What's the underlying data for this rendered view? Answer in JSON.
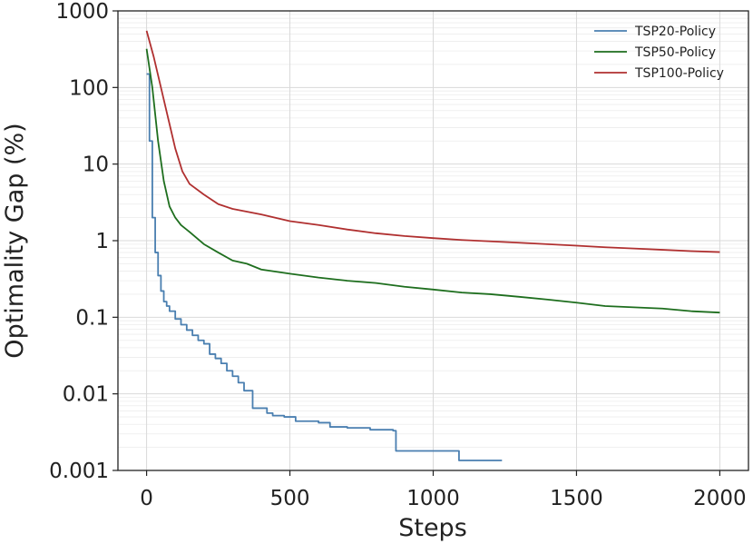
{
  "chart_data": {
    "type": "line",
    "title": "",
    "xlabel": "Steps",
    "ylabel": "Optimality Gap (%)",
    "xlim": [
      -100,
      2100
    ],
    "ylim": [
      0.001,
      1000
    ],
    "yscale": "log",
    "grid": true,
    "legend_position": "top-right",
    "x_ticks": [
      0,
      500,
      1000,
      1500,
      2000
    ],
    "x_tick_labels": [
      "0",
      "500",
      "1000",
      "1500",
      "2000"
    ],
    "y_ticks": [
      0.001,
      0.01,
      0.1,
      1,
      10,
      100,
      1000
    ],
    "y_tick_labels": [
      "0.001",
      "0.01",
      "0.1",
      "1",
      "10",
      "100",
      "1000"
    ],
    "series": [
      {
        "name": "TSP20-Policy",
        "color": "#4a7fb0",
        "step": true,
        "x": [
          0,
          10,
          20,
          30,
          40,
          50,
          60,
          70,
          80,
          100,
          120,
          140,
          160,
          180,
          200,
          220,
          240,
          260,
          280,
          300,
          320,
          340,
          360,
          370,
          380,
          390,
          420,
          440,
          480,
          520,
          560,
          600,
          640,
          700,
          780,
          860,
          870,
          1080,
          1090,
          1240
        ],
        "y": [
          150,
          20,
          2.0,
          0.7,
          0.35,
          0.22,
          0.16,
          0.14,
          0.12,
          0.095,
          0.08,
          0.068,
          0.058,
          0.05,
          0.045,
          0.033,
          0.029,
          0.025,
          0.02,
          0.017,
          0.014,
          0.011,
          0.011,
          0.0065,
          0.0065,
          0.0065,
          0.0056,
          0.0052,
          0.005,
          0.0044,
          0.0044,
          0.0042,
          0.0037,
          0.0036,
          0.0034,
          0.0033,
          0.0018,
          0.0018,
          0.00135,
          0.00135
        ]
      },
      {
        "name": "TSP50-Policy",
        "color": "#1e6e1e",
        "step": false,
        "x": [
          0,
          20,
          40,
          60,
          80,
          100,
          120,
          150,
          200,
          250,
          300,
          350,
          400,
          500,
          600,
          700,
          800,
          900,
          1000,
          1100,
          1200,
          1300,
          1400,
          1500,
          1600,
          1700,
          1800,
          1900,
          2000
        ],
        "y": [
          320,
          100,
          20,
          6,
          2.8,
          2.0,
          1.6,
          1.3,
          0.9,
          0.7,
          0.55,
          0.5,
          0.42,
          0.37,
          0.33,
          0.3,
          0.28,
          0.25,
          0.23,
          0.21,
          0.2,
          0.185,
          0.17,
          0.155,
          0.14,
          0.135,
          0.13,
          0.12,
          0.115
        ]
      },
      {
        "name": "TSP100-Policy",
        "color": "#b03030",
        "step": false,
        "x": [
          0,
          25,
          50,
          75,
          100,
          125,
          150,
          200,
          250,
          300,
          400,
          500,
          600,
          700,
          800,
          900,
          1000,
          1100,
          1200,
          1300,
          1400,
          1500,
          1600,
          1700,
          1800,
          1900,
          2000
        ],
        "y": [
          550,
          250,
          100,
          40,
          16,
          8,
          5.5,
          4.0,
          3.0,
          2.6,
          2.2,
          1.8,
          1.6,
          1.4,
          1.25,
          1.15,
          1.08,
          1.02,
          0.98,
          0.94,
          0.9,
          0.86,
          0.82,
          0.79,
          0.76,
          0.73,
          0.71
        ]
      }
    ]
  }
}
